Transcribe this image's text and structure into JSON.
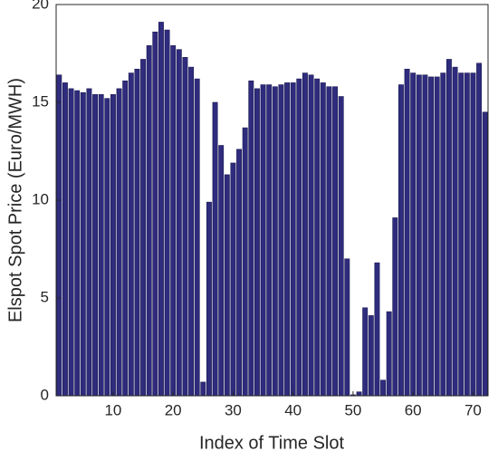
{
  "chart_data": {
    "type": "bar",
    "xlabel": "Index of Time Slot",
    "ylabel": "Elspot Spot Price (Euro/MWH)",
    "x": [
      1,
      2,
      3,
      4,
      5,
      6,
      7,
      8,
      9,
      10,
      11,
      12,
      13,
      14,
      15,
      16,
      17,
      18,
      19,
      20,
      21,
      22,
      23,
      24,
      25,
      26,
      27,
      28,
      29,
      30,
      31,
      32,
      33,
      34,
      35,
      36,
      37,
      38,
      39,
      40,
      41,
      42,
      43,
      44,
      45,
      46,
      47,
      48,
      49,
      50,
      51,
      52,
      53,
      54,
      55,
      56,
      57,
      58,
      59,
      60,
      61,
      62,
      63,
      64,
      65,
      66,
      67,
      68,
      69,
      70,
      71,
      72
    ],
    "values": [
      16.4,
      16.0,
      15.7,
      15.6,
      15.5,
      15.7,
      15.4,
      15.4,
      15.2,
      15.4,
      15.7,
      16.1,
      16.5,
      16.7,
      17.2,
      17.9,
      18.6,
      19.1,
      18.7,
      17.9,
      17.7,
      17.3,
      16.8,
      16.2,
      0.7,
      9.9,
      15.0,
      12.8,
      11.3,
      11.9,
      12.6,
      13.7,
      16.1,
      15.7,
      15.9,
      15.9,
      15.8,
      15.9,
      16.0,
      16.0,
      16.2,
      16.5,
      16.4,
      16.2,
      16.0,
      15.8,
      15.8,
      15.3,
      7.0,
      0.05,
      0.2,
      4.5,
      4.1,
      6.8,
      0.8,
      4.3,
      9.1,
      15.9,
      16.7,
      16.5,
      16.4,
      16.4,
      16.3,
      16.3,
      16.5,
      17.2,
      16.8,
      16.5,
      16.5,
      16.5,
      17.0,
      14.5
    ],
    "color": "#2f2c7e",
    "xlim": [
      0.5,
      72.5
    ],
    "xticks": [
      10,
      20,
      30,
      40,
      50,
      60,
      70
    ],
    "ylim": [
      0,
      20
    ],
    "yticks": [
      0,
      5,
      10,
      15,
      20
    ]
  }
}
